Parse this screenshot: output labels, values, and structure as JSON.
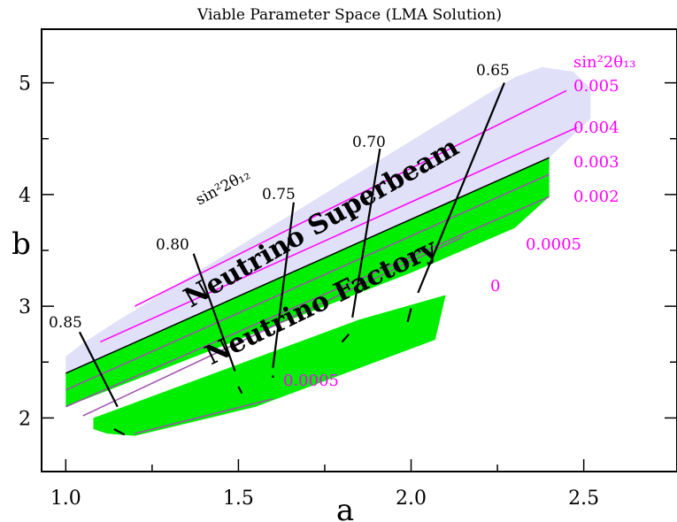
{
  "chart_data": {
    "type": "contour",
    "title": "Viable Parameter Space (LMA Solution)",
    "xlabel": "a",
    "ylabel": "b",
    "xlim": [
      0.93,
      2.77
    ],
    "ylim": [
      1.52,
      5.48
    ],
    "xticks": [
      1.0,
      1.5,
      2.0,
      2.5
    ],
    "xtick_labels": [
      "1.0",
      "1.5",
      "2.0",
      "2.5"
    ],
    "yticks": [
      2,
      3,
      4,
      5
    ],
    "ytick_labels": [
      "2",
      "3",
      "4",
      "5"
    ],
    "x_minor": [
      1.25,
      1.75,
      2.25
    ],
    "y_minor": [
      2.5,
      3.5,
      4.5
    ],
    "colors": {
      "superbeam": "#e0e0f8",
      "factory": "#00ee00",
      "theta13": "#ff00ff",
      "theta13_dim": "#a050b0",
      "theta12": "#000000"
    },
    "regions": [
      {
        "name": "Neutrino Superbeam",
        "label": "Neutrino Superbeam",
        "color": "#e0e0f8",
        "polygon": [
          [
            1.0,
            2.4
          ],
          [
            1.0,
            2.55
          ],
          [
            1.05,
            2.67
          ],
          [
            1.15,
            2.87
          ],
          [
            2.3,
            5.05
          ],
          [
            2.38,
            5.14
          ],
          [
            2.47,
            5.1
          ],
          [
            2.52,
            4.95
          ],
          [
            2.52,
            4.68
          ],
          [
            2.4,
            4.33
          ]
        ]
      },
      {
        "name": "Neutrino Factory",
        "label": "Neutrino Factory",
        "color": "#00ee00",
        "polygon": [
          [
            1.0,
            2.4
          ],
          [
            2.4,
            4.33
          ],
          [
            2.4,
            3.98
          ],
          [
            2.3,
            3.7
          ],
          [
            2.0,
            3.3
          ],
          [
            1.0,
            2.1
          ]
        ]
      },
      {
        "name": "Neutrino Factory lower band",
        "color": "#00ee00",
        "polygon": [
          [
            1.08,
            1.9
          ],
          [
            1.12,
            1.86
          ],
          [
            1.2,
            1.84
          ],
          [
            1.55,
            2.1
          ],
          [
            2.07,
            2.7
          ],
          [
            2.1,
            3.1
          ],
          [
            1.85,
            2.88
          ],
          [
            1.08,
            2.0
          ]
        ]
      }
    ],
    "boundary_line": {
      "name": "superbeam/factory boundary",
      "color": "#000000",
      "points": [
        [
          1.0,
          2.4
        ],
        [
          2.4,
          4.33
        ]
      ]
    },
    "sin2_2theta13": {
      "label": "sin²2θ₁₃",
      "contours": [
        {
          "label": "0.005",
          "color": "#ff00ff",
          "points": [
            [
              1.2,
              3.0
            ],
            [
              2.45,
              4.93
            ]
          ]
        },
        {
          "label": "0.004",
          "color": "#ff00ff",
          "points": [
            [
              1.1,
              2.68
            ],
            [
              2.48,
              4.6
            ]
          ]
        },
        {
          "label": "0.003",
          "color": "#a050b0",
          "points": [
            [
              1.0,
              2.25
            ],
            [
              2.4,
              4.18
            ]
          ]
        },
        {
          "label": "0.002",
          "color": "#a050b0",
          "points": [
            [
              1.0,
              2.1
            ],
            [
              2.4,
              3.98
            ]
          ]
        },
        {
          "label": "0.0005",
          "color": "#a050b0",
          "points": [
            [
              1.05,
              2.02
            ],
            [
              2.15,
              3.62
            ]
          ]
        },
        {
          "label": "0",
          "color": "#ff00ff",
          "points": []
        },
        {
          "label": "0.0005",
          "color": "#a050b0",
          "points": [
            [
              1.2,
              1.86
            ],
            [
              1.6,
              2.17
            ]
          ]
        }
      ]
    },
    "sin2_2theta12": {
      "label": "sin²2θ₁₂",
      "contours": [
        {
          "label": "0.85",
          "points": [
            [
              1.04,
              2.77
            ],
            [
              1.15,
              2.1
            ]
          ],
          "points2": [
            [
              1.14,
              1.9
            ],
            [
              1.17,
              1.85
            ]
          ]
        },
        {
          "label": "0.80",
          "points": [
            [
              1.37,
              3.47
            ],
            [
              1.49,
              2.42
            ]
          ],
          "points2": [
            [
              1.5,
              2.28
            ],
            [
              1.51,
              2.22
            ]
          ]
        },
        {
          "label": "0.75",
          "points": [
            [
              1.66,
              3.93
            ],
            [
              1.6,
              2.45
            ]
          ],
          "points2": [
            [
              1.6,
              2.38
            ],
            [
              1.6,
              2.36
            ]
          ]
        },
        {
          "label": "0.70",
          "points": [
            [
              1.91,
              4.41
            ],
            [
              1.83,
              2.9
            ]
          ],
          "points2": [
            [
              1.82,
              2.75
            ],
            [
              1.8,
              2.68
            ]
          ]
        },
        {
          "label": "0.65",
          "points": [
            [
              2.27,
              5.0
            ],
            [
              2.02,
              3.12
            ]
          ],
          "points2": [
            [
              2.0,
              2.98
            ],
            [
              1.99,
              2.86
            ]
          ]
        }
      ]
    }
  }
}
